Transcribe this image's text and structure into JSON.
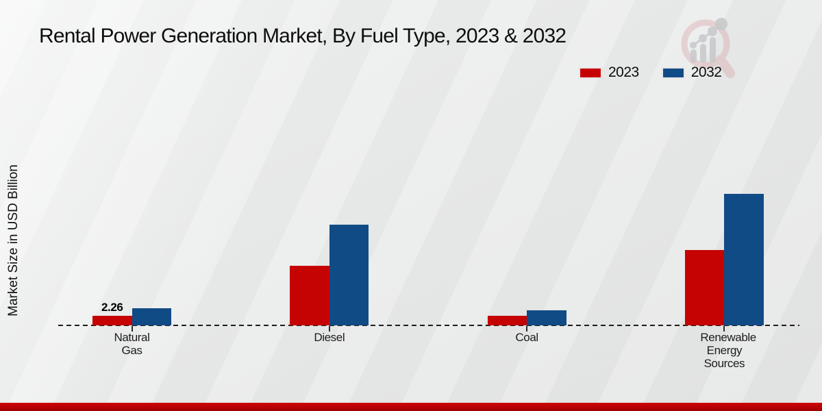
{
  "title": "Rental Power Generation Market, By Fuel Type, 2023 & 2032",
  "ylabel": "Market Size in USD Billion",
  "legend": {
    "items": [
      {
        "label": "2023",
        "color": "#c60303"
      },
      {
        "label": "2032",
        "color": "#114b86"
      }
    ]
  },
  "watermark_icon": "magnifier-bar-chart-logo",
  "colors": {
    "series_2023": "#c60303",
    "series_2032": "#114b86",
    "footer_band": "#c00000",
    "background": "#e9eaea",
    "axis": "#1c1c1c"
  },
  "chart_data": {
    "type": "bar",
    "title": "Rental Power Generation Market, By Fuel Type, 2023 & 2032",
    "xlabel": "",
    "ylabel": "Market Size in USD Billion",
    "categories": [
      "Natural Gas",
      "Diesel",
      "Coal",
      "Renewable Energy Sources"
    ],
    "series": [
      {
        "name": "2023",
        "color": "#c60303",
        "values": [
          2.26,
          13.8,
          2.2,
          17.4
        ]
      },
      {
        "name": "2032",
        "color": "#114b86",
        "values": [
          3.9,
          23.2,
          3.4,
          30.3
        ]
      }
    ],
    "annotations": [
      {
        "series_index": 0,
        "category_index": 0,
        "text": "2.26"
      }
    ],
    "ylim": [
      0,
      35
    ],
    "grid": false,
    "baseline_style": "dashed",
    "legend_position": "top-right"
  }
}
